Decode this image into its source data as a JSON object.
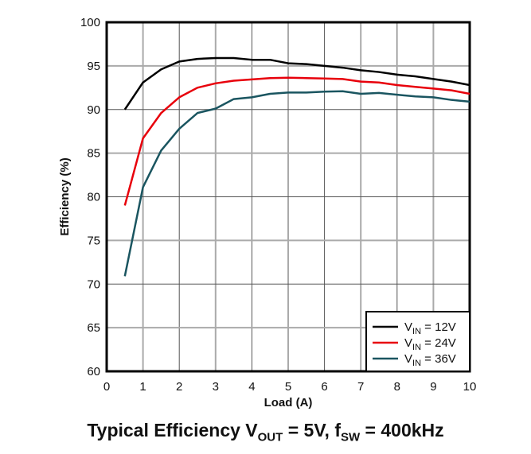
{
  "chart_data": {
    "type": "line",
    "title": "Typical Efficiency V_OUT = 5V, f_SW = 400kHz",
    "title_parts": {
      "a": "Typical Efficiency V",
      "b": "OUT",
      "c": " = 5V, f",
      "d": "SW",
      "e": " = 400kHz"
    },
    "xlabel": "Load (A)",
    "ylabel": "Efficiency (%)",
    "xlim": [
      0,
      10
    ],
    "ylim": [
      60,
      100
    ],
    "xticks": [
      0,
      1,
      2,
      3,
      4,
      5,
      6,
      7,
      8,
      9,
      10
    ],
    "yticks": [
      60,
      65,
      70,
      75,
      80,
      85,
      90,
      95,
      100
    ],
    "grid": true,
    "legend_placement": "bottom-right",
    "x": [
      0.5,
      1,
      1.5,
      2,
      2.5,
      3,
      3.5,
      4,
      4.5,
      5,
      5.5,
      6,
      6.5,
      7,
      7.5,
      8,
      8.5,
      9,
      9.5,
      10
    ],
    "series": [
      {
        "name": "V_IN = 12V",
        "label_parts": [
          "V",
          "IN",
          " = 12V"
        ],
        "color": "#000000",
        "values": [
          90,
          93.1,
          94.6,
          95.5,
          95.8,
          95.9,
          95.9,
          95.7,
          95.7,
          95.3,
          95.2,
          95.0,
          94.8,
          94.5,
          94.3,
          94.0,
          93.8,
          93.5,
          93.2,
          92.8
        ]
      },
      {
        "name": "V_IN = 24V",
        "label_parts": [
          "V",
          "IN",
          " = 24V"
        ],
        "color": "#e8000b",
        "values": [
          79,
          86.7,
          89.6,
          91.4,
          92.5,
          93.0,
          93.3,
          93.45,
          93.6,
          93.65,
          93.6,
          93.55,
          93.5,
          93.2,
          93.1,
          92.8,
          92.6,
          92.4,
          92.2,
          91.8
        ]
      },
      {
        "name": "V_IN = 36V",
        "label_parts": [
          "V",
          "IN",
          " = 36V"
        ],
        "color": "#1a5560",
        "values": [
          70.9,
          81.1,
          85.3,
          87.8,
          89.6,
          90.1,
          91.2,
          91.4,
          91.8,
          91.95,
          91.95,
          92.05,
          92.1,
          91.8,
          91.9,
          91.7,
          91.5,
          91.4,
          91.1,
          90.9
        ]
      }
    ]
  }
}
